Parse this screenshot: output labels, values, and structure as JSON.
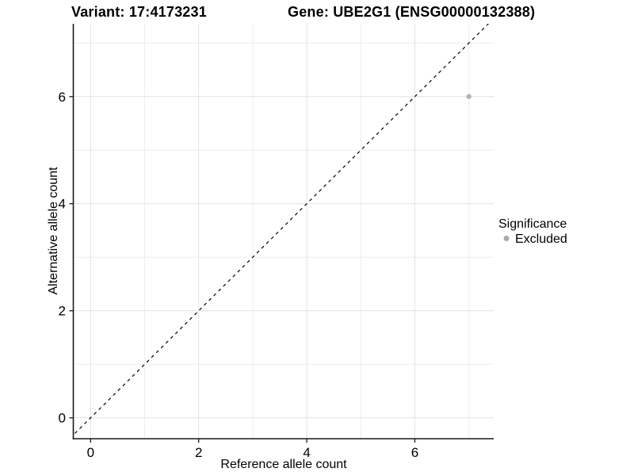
{
  "chart_data": {
    "type": "scatter",
    "title_left": "Variant: 17:4173231",
    "title_right": "Gene: UBE2G1 (ENSG00000132388)",
    "xlabel": "Reference allele count",
    "ylabel": "Alternative allele count",
    "xlim": [
      -0.32,
      7.46
    ],
    "ylim": [
      -0.39,
      7.36
    ],
    "x_major_ticks": [
      0,
      2,
      4,
      6
    ],
    "x_minor_ticks": [
      1,
      3,
      5,
      7
    ],
    "y_major_ticks": [
      0,
      2,
      4,
      6
    ],
    "y_minor_ticks": [
      1,
      3,
      5,
      7
    ],
    "grid": "major+minor",
    "reference_line": {
      "kind": "identity y=x",
      "style": "dashed",
      "color": "#000000"
    },
    "series": [
      {
        "name": "Excluded",
        "color": "#b3b3b3",
        "points": [
          {
            "x": 7,
            "y": 6
          }
        ]
      }
    ],
    "legend": {
      "title": "Significance",
      "position": "right",
      "items": [
        {
          "label": "Excluded",
          "color": "#a9a9a9"
        }
      ]
    }
  },
  "styles": {
    "grid_major_color": "#e2e2e2",
    "grid_minor_color": "#eeeeee",
    "axis_color": "#1a1a1a",
    "background": "#ffffff"
  }
}
